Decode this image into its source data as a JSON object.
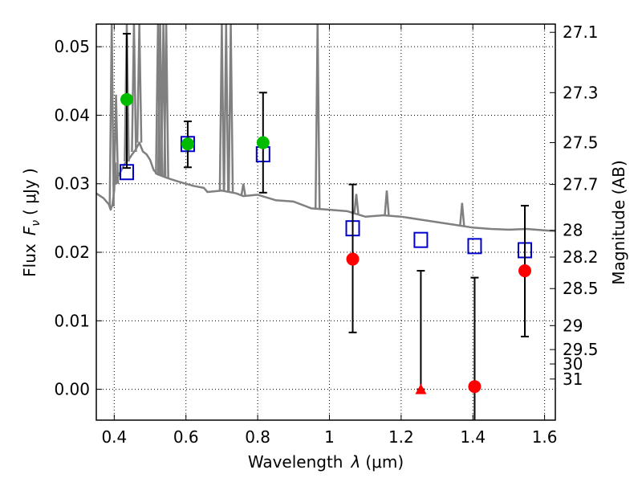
{
  "chart_data": {
    "type": "scatter",
    "xlabel": "Wavelength",
    "xlabel_symbol": "λ",
    "xlabel_unit": "(μm)",
    "ylabel": "Flux",
    "ylabel_symbol": "F",
    "ylabel_subscript": "ν",
    "ylabel_unit": "( μJy )",
    "y2label": "Magnitude (AB)",
    "xlim": [
      0.35,
      1.63
    ],
    "ylim": [
      -0.0045,
      0.0533
    ],
    "grid": true,
    "x_ticks": [
      {
        "value": 0.4,
        "label": "0.4"
      },
      {
        "value": 0.6,
        "label": "0.6"
      },
      {
        "value": 0.8,
        "label": "0.8"
      },
      {
        "value": 1.0,
        "label": "1"
      },
      {
        "value": 1.2,
        "label": "1.2"
      },
      {
        "value": 1.4,
        "label": "1.4"
      },
      {
        "value": 1.6,
        "label": "1.6"
      }
    ],
    "y_ticks": [
      {
        "value": 0.0,
        "label": "0.00"
      },
      {
        "value": 0.01,
        "label": "0.01"
      },
      {
        "value": 0.02,
        "label": "0.02"
      },
      {
        "value": 0.03,
        "label": "0.03"
      },
      {
        "value": 0.04,
        "label": "0.04"
      },
      {
        "value": 0.05,
        "label": "0.05"
      }
    ],
    "y2_ticks": [
      {
        "flux": 0.0521,
        "label": "27.1"
      },
      {
        "flux": 0.0433,
        "label": "27.3"
      },
      {
        "flux": 0.036,
        "label": "27.5"
      },
      {
        "flux": 0.0299,
        "label": "27.7"
      },
      {
        "flux": 0.0232,
        "label": "28"
      },
      {
        "flux": 0.0193,
        "label": "28.2"
      },
      {
        "flux": 0.0147,
        "label": "28.5"
      },
      {
        "flux": 0.0093,
        "label": "29"
      },
      {
        "flux": 0.0058,
        "label": "29.5"
      },
      {
        "flux": 0.0037,
        "label": "30"
      },
      {
        "flux": 0.0015,
        "label": "31"
      }
    ],
    "colors": {
      "spectrum": "#808080",
      "model_box": "#0000cc",
      "measured_green": "#00bb00",
      "measured_red": "#ff0000",
      "errorbar": "#000000",
      "grid": "#000000"
    },
    "spectrum": [
      [
        0.35,
        0.0286
      ],
      [
        0.37,
        0.0279
      ],
      [
        0.385,
        0.027
      ],
      [
        0.39,
        0.0262
      ],
      [
        0.395,
        0.027
      ],
      [
        0.4,
        0.029
      ],
      [
        0.403,
        0.033
      ],
      [
        0.405,
        0.03
      ],
      [
        0.41,
        0.031
      ],
      [
        0.42,
        0.032
      ],
      [
        0.43,
        0.033
      ],
      [
        0.44,
        0.0335
      ],
      [
        0.45,
        0.0343
      ],
      [
        0.46,
        0.035
      ],
      [
        0.47,
        0.036
      ],
      [
        0.48,
        0.0347
      ],
      [
        0.49,
        0.0343
      ],
      [
        0.5,
        0.0335
      ],
      [
        0.51,
        0.032
      ],
      [
        0.52,
        0.0314
      ],
      [
        0.55,
        0.0308
      ],
      [
        0.58,
        0.0303
      ],
      [
        0.6,
        0.03
      ],
      [
        0.62,
        0.0297
      ],
      [
        0.65,
        0.0294
      ],
      [
        0.66,
        0.0288
      ],
      [
        0.7,
        0.029
      ],
      [
        0.74,
        0.0286
      ],
      [
        0.76,
        0.0282
      ],
      [
        0.8,
        0.0284
      ],
      [
        0.85,
        0.0276
      ],
      [
        0.9,
        0.0274
      ],
      [
        0.95,
        0.0264
      ],
      [
        1.0,
        0.0262
      ],
      [
        1.05,
        0.026
      ],
      [
        1.1,
        0.0252
      ],
      [
        1.15,
        0.0254
      ],
      [
        1.2,
        0.0252
      ],
      [
        1.25,
        0.0248
      ],
      [
        1.3,
        0.0244
      ],
      [
        1.35,
        0.024
      ],
      [
        1.4,
        0.0236
      ],
      [
        1.45,
        0.0234
      ],
      [
        1.5,
        0.0233
      ],
      [
        1.55,
        0.0234
      ],
      [
        1.6,
        0.0232
      ],
      [
        1.63,
        0.0231
      ]
    ],
    "spectrum_spikes": [
      {
        "x": 0.393,
        "top": 0.0533
      },
      {
        "x": 0.405,
        "top": 0.043
      },
      {
        "x": 0.435,
        "top": 0.0533
      },
      {
        "x": 0.455,
        "top": 0.0533
      },
      {
        "x": 0.47,
        "top": 0.0533
      },
      {
        "x": 0.522,
        "top": 0.0533
      },
      {
        "x": 0.528,
        "top": 0.0533
      },
      {
        "x": 0.537,
        "top": 0.0533
      },
      {
        "x": 0.545,
        "top": 0.0533
      },
      {
        "x": 0.7,
        "top": 0.0533
      },
      {
        "x": 0.712,
        "top": 0.0533
      },
      {
        "x": 0.725,
        "top": 0.0533
      },
      {
        "x": 0.76,
        "top": 0.03
      },
      {
        "x": 0.967,
        "top": 0.0533
      },
      {
        "x": 1.075,
        "top": 0.0285
      },
      {
        "x": 1.16,
        "top": 0.029
      },
      {
        "x": 1.37,
        "top": 0.0272
      }
    ],
    "model_points": [
      {
        "x": 0.435,
        "y": 0.0317
      },
      {
        "x": 0.605,
        "y": 0.0358
      },
      {
        "x": 0.815,
        "y": 0.0343
      },
      {
        "x": 1.065,
        "y": 0.0235
      },
      {
        "x": 1.255,
        "y": 0.0218
      },
      {
        "x": 1.405,
        "y": 0.0209
      },
      {
        "x": 1.545,
        "y": 0.0203
      }
    ],
    "measured_points": [
      {
        "x": 0.435,
        "y": 0.0423,
        "err_low": 0.0323,
        "err_high": 0.0519,
        "marker": "circle",
        "color": "green"
      },
      {
        "x": 0.605,
        "y": 0.0358,
        "err_low": 0.0324,
        "err_high": 0.0391,
        "marker": "circle",
        "color": "green"
      },
      {
        "x": 0.815,
        "y": 0.036,
        "err_low": 0.0287,
        "err_high": 0.0433,
        "marker": "circle",
        "color": "green"
      },
      {
        "x": 1.065,
        "y": 0.019,
        "err_low": 0.0083,
        "err_high": 0.0299,
        "marker": "circle",
        "color": "red"
      },
      {
        "x": 1.255,
        "y": 0.0,
        "err_low": 0.0,
        "err_high": 0.0173,
        "marker": "triangle",
        "color": "red"
      },
      {
        "x": 1.405,
        "y": 0.0004,
        "err_low": -0.005,
        "err_high": 0.0163,
        "marker": "circle",
        "color": "red"
      },
      {
        "x": 1.545,
        "y": 0.0173,
        "err_low": 0.0077,
        "err_high": 0.0268,
        "marker": "circle",
        "color": "red"
      }
    ]
  }
}
